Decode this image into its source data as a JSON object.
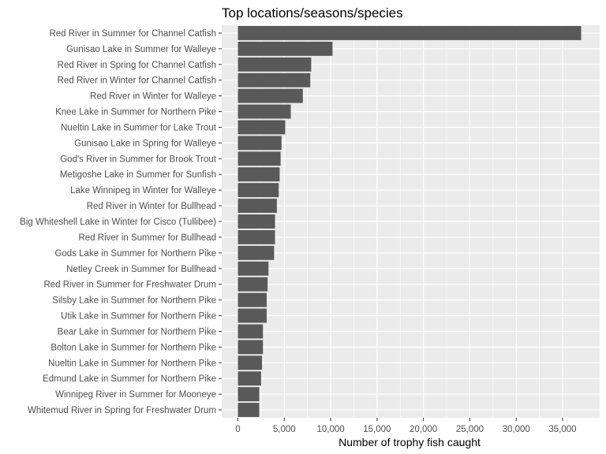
{
  "chart_data": {
    "type": "bar",
    "orientation": "horizontal",
    "title": "Top locations/seasons/species",
    "xlabel": "Number of trophy fish caught",
    "ylabel": "",
    "xlim": [
      0,
      37000
    ],
    "x_ticks": [
      0,
      5000,
      10000,
      15000,
      20000,
      25000,
      30000,
      35000
    ],
    "x_tick_labels": [
      "0",
      "5,000",
      "10,000",
      "15,000",
      "20,000",
      "25,000",
      "30,000",
      "35,000"
    ],
    "grid": true,
    "legend": "none",
    "colors": {
      "bar": "#595959",
      "panel": "#ebebeb",
      "gridline": "#ffffff"
    },
    "categories": [
      "Red River in Summer for Channel Catfish",
      "Gunisao Lake in Summer for Walleye",
      "Red River in Spring for Channel Catfish",
      "Red River in Winter for Channel Catfish",
      "Red River in Winter for Walleye",
      "Knee Lake in Summer for Northern Pike",
      "Nueltin Lake in Summer for Lake Trout",
      "Gunisao Lake in Spring for Walleye",
      "God's River in Summer for Brook Trout",
      "Metigoshe Lake in Summer for Sunfish",
      "Lake Winnipeg in Winter for Walleye",
      "Red River in Winter for Bullhead",
      "Big Whiteshell Lake in Winter for Cisco (Tullibee)",
      "Red River in Summer for Bullhead",
      "Gods Lake in Summer for Northern Pike",
      "Netley Creek in Summer for Bullhead",
      "Red River in Summer for Freshwater Drum",
      "Silsby Lake in Summer for Northern Pike",
      "Utik Lake in Summer for Northern Pike",
      "Bear Lake in Summer for Northern Pike",
      "Bolton Lake in Summer for Northern Pike",
      "Nueltin Lake in Summer for Northern Pike",
      "Edmund Lake in Summer for Northern Pike",
      "Winnipeg River in Summer for Mooneye",
      "Whitemud River in Spring for Freshwater Drum"
    ],
    "values": [
      37000,
      10200,
      7900,
      7800,
      7000,
      5700,
      5100,
      4700,
      4600,
      4500,
      4400,
      4200,
      4000,
      4000,
      3900,
      3300,
      3200,
      3100,
      3100,
      2700,
      2700,
      2600,
      2500,
      2300,
      2300
    ]
  }
}
